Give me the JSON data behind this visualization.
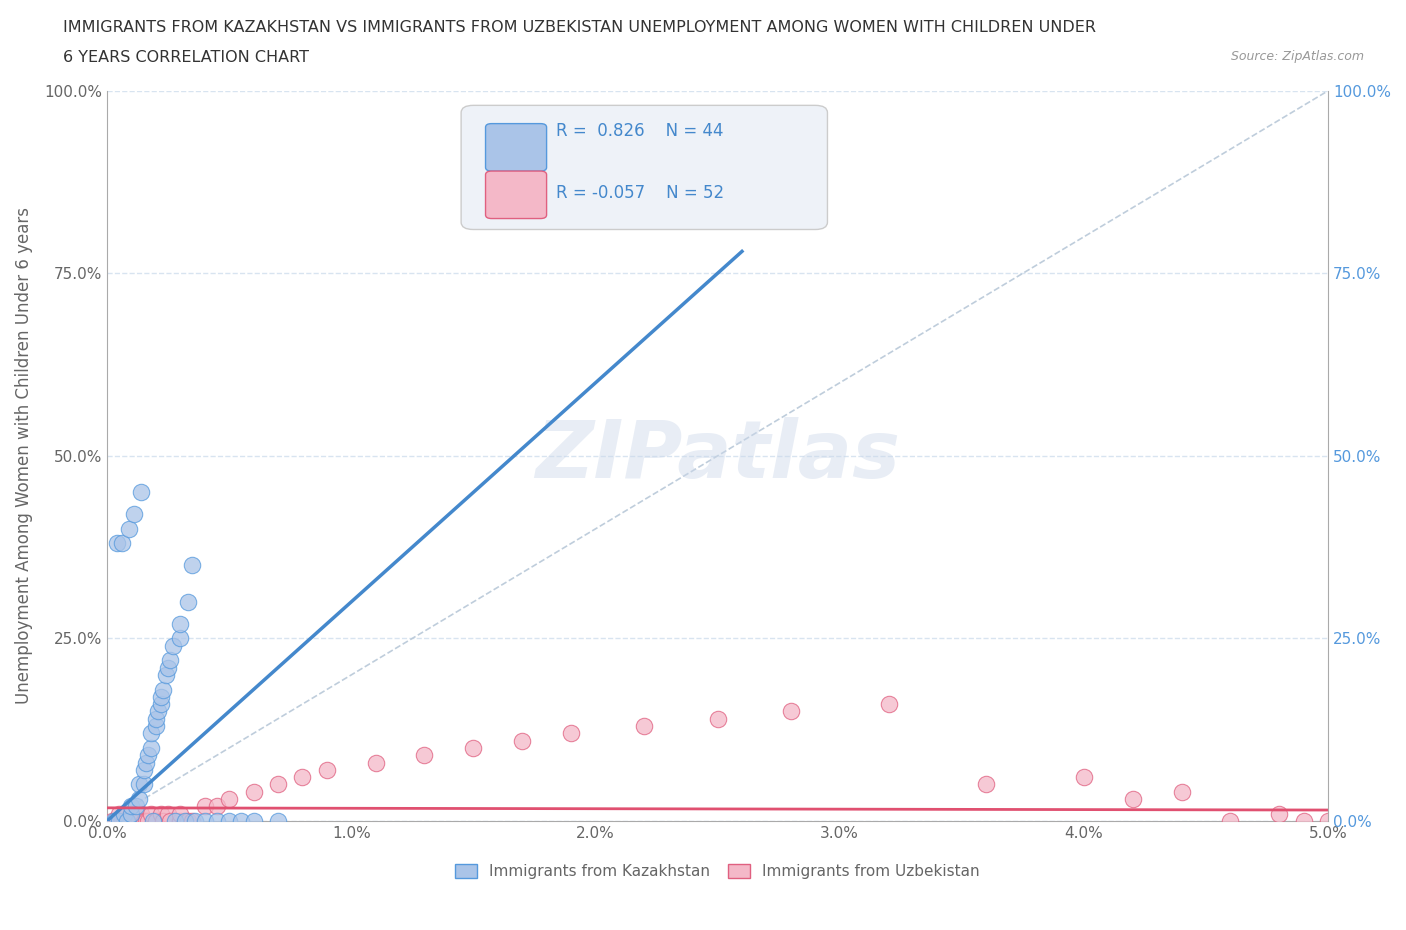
{
  "title_line1": "IMMIGRANTS FROM KAZAKHSTAN VS IMMIGRANTS FROM UZBEKISTAN UNEMPLOYMENT AMONG WOMEN WITH CHILDREN UNDER",
  "title_line2": "6 YEARS CORRELATION CHART",
  "source_text": "Source: ZipAtlas.com",
  "xlabel": "Immigrants from Kazakhstan",
  "ylabel": "Unemployment Among Women with Children Under 6 years",
  "xlim": [
    0.0,
    0.05
  ],
  "ylim": [
    0.0,
    1.0
  ],
  "xticks": [
    0.0,
    0.01,
    0.02,
    0.03,
    0.04,
    0.05
  ],
  "xticklabels": [
    "0.0%",
    "1.0%",
    "2.0%",
    "3.0%",
    "4.0%",
    "5.0%"
  ],
  "yticks": [
    0.0,
    0.25,
    0.5,
    0.75,
    1.0
  ],
  "yticklabels": [
    "0.0%",
    "25.0%",
    "50.0%",
    "75.0%",
    "100.0%"
  ],
  "kazakhstan_color": "#aac4e8",
  "uzbekistan_color": "#f4b8c8",
  "kazakhstan_edge_color": "#5599dd",
  "uzbekistan_edge_color": "#e06080",
  "kazakhstan_line_color": "#4488cc",
  "uzbekistan_line_color": "#e05070",
  "diag_line_color": "#b8c8d8",
  "legend_box_color": "#eef2f8",
  "legend_border_color": "#cccccc",
  "r_kaz": 0.826,
  "n_kaz": 44,
  "r_uzb": -0.057,
  "n_uzb": 52,
  "watermark_text": "ZIPatlas",
  "background_color": "#ffffff",
  "grid_color": "#d8e4f0",
  "text_color": "#333333",
  "axis_color": "#aaaaaa",
  "tick_color": "#666666",
  "right_tick_color": "#5599dd",
  "kaz_x": [
    0.0003,
    0.0005,
    0.0007,
    0.0008,
    0.001,
    0.001,
    0.0012,
    0.0013,
    0.0013,
    0.0015,
    0.0015,
    0.0016,
    0.0017,
    0.0018,
    0.0018,
    0.002,
    0.002,
    0.0021,
    0.0022,
    0.0022,
    0.0023,
    0.0024,
    0.0025,
    0.0026,
    0.0027,
    0.003,
    0.003,
    0.0033,
    0.0035,
    0.0004,
    0.0006,
    0.0009,
    0.0011,
    0.0014,
    0.0019,
    0.0028,
    0.0032,
    0.0036,
    0.004,
    0.0045,
    0.005,
    0.0055,
    0.006,
    0.007
  ],
  "kaz_y": [
    0.0,
    0.0,
    0.01,
    0.0,
    0.01,
    0.02,
    0.02,
    0.03,
    0.05,
    0.05,
    0.07,
    0.08,
    0.09,
    0.1,
    0.12,
    0.13,
    0.14,
    0.15,
    0.16,
    0.17,
    0.18,
    0.2,
    0.21,
    0.22,
    0.24,
    0.25,
    0.27,
    0.3,
    0.35,
    0.38,
    0.38,
    0.4,
    0.42,
    0.45,
    0.0,
    0.0,
    0.0,
    0.0,
    0.0,
    0.0,
    0.0,
    0.0,
    0.0,
    0.0
  ],
  "uzb_x": [
    0.0002,
    0.0004,
    0.0005,
    0.0006,
    0.0007,
    0.0008,
    0.0009,
    0.001,
    0.001,
    0.0011,
    0.0012,
    0.0012,
    0.0013,
    0.0014,
    0.0015,
    0.0016,
    0.0017,
    0.0018,
    0.002,
    0.002,
    0.0022,
    0.0023,
    0.0025,
    0.0026,
    0.003,
    0.003,
    0.0033,
    0.0035,
    0.004,
    0.0045,
    0.005,
    0.006,
    0.007,
    0.008,
    0.009,
    0.011,
    0.013,
    0.015,
    0.017,
    0.019,
    0.022,
    0.025,
    0.028,
    0.032,
    0.036,
    0.04,
    0.042,
    0.044,
    0.046,
    0.048,
    0.049,
    0.05
  ],
  "uzb_y": [
    0.0,
    0.0,
    0.01,
    0.0,
    0.0,
    0.01,
    0.0,
    0.0,
    0.01,
    0.0,
    0.01,
    0.0,
    0.0,
    0.01,
    0.0,
    0.0,
    0.0,
    0.01,
    0.0,
    0.0,
    0.01,
    0.0,
    0.01,
    0.0,
    0.0,
    0.01,
    0.0,
    0.0,
    0.02,
    0.02,
    0.03,
    0.04,
    0.05,
    0.06,
    0.07,
    0.08,
    0.09,
    0.1,
    0.11,
    0.12,
    0.13,
    0.14,
    0.15,
    0.16,
    0.05,
    0.06,
    0.03,
    0.04,
    0.0,
    0.01,
    0.0,
    0.0
  ],
  "kaz_trend_x": [
    0.0,
    0.026
  ],
  "kaz_trend_y": [
    0.0,
    0.78
  ],
  "uzb_trend_x": [
    0.0,
    0.05
  ],
  "uzb_trend_y": [
    0.018,
    0.015
  ]
}
